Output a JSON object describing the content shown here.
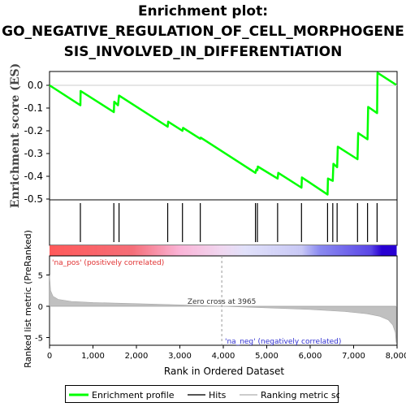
{
  "title_lines": [
    "Enrichment plot:",
    "GO_NEGATIVE_REGULATION_OF_CELL_MORPHOGENE",
    "SIS_INVOLVED_IN_DIFFERENTIATION"
  ],
  "chart_data": {
    "type": "line",
    "es_panel": {
      "ylabel": "Enrichment score (ES)",
      "ylim": [
        -0.5,
        0.05
      ],
      "yticks": [
        "0.0",
        "-0.1",
        "-0.2",
        "-0.3",
        "-0.4",
        "-0.5"
      ],
      "ytick_values": [
        0.0,
        -0.1,
        -0.2,
        -0.3,
        -0.4,
        -0.5
      ],
      "profile_color": "#00ff00",
      "profile": [
        [
          0,
          0.0
        ],
        [
          710,
          -0.088
        ],
        [
          715,
          -0.025
        ],
        [
          1480,
          -0.118
        ],
        [
          1490,
          -0.072
        ],
        [
          1575,
          -0.088
        ],
        [
          1600,
          -0.045
        ],
        [
          2720,
          -0.182
        ],
        [
          2730,
          -0.16
        ],
        [
          3060,
          -0.2
        ],
        [
          3075,
          -0.187
        ],
        [
          3470,
          -0.235
        ],
        [
          3480,
          -0.23
        ],
        [
          4740,
          -0.385
        ],
        [
          4760,
          -0.37
        ],
        [
          4785,
          -0.373
        ],
        [
          4795,
          -0.357
        ],
        [
          5250,
          -0.41
        ],
        [
          5265,
          -0.385
        ],
        [
          5800,
          -0.45
        ],
        [
          5810,
          -0.405
        ],
        [
          6400,
          -0.48
        ],
        [
          6410,
          -0.41
        ],
        [
          6520,
          -0.42
        ],
        [
          6535,
          -0.345
        ],
        [
          6620,
          -0.36
        ],
        [
          6635,
          -0.27
        ],
        [
          7090,
          -0.325
        ],
        [
          7105,
          -0.21
        ],
        [
          7320,
          -0.237
        ],
        [
          7335,
          -0.095
        ],
        [
          7540,
          -0.122
        ],
        [
          7550,
          0.055
        ],
        [
          7980,
          0.002
        ]
      ]
    },
    "hits": [
      710,
      1480,
      1600,
      2720,
      3060,
      3470,
      4740,
      4785,
      5250,
      5800,
      6400,
      6520,
      6620,
      7090,
      7320,
      7540
    ],
    "metric_panel": {
      "ylabel": "Ranked list metric (PreRanked)",
      "ylim": [
        -6,
        8
      ],
      "yticks": [
        "5",
        "0",
        "-5"
      ],
      "ytick_values": [
        5,
        0,
        -5
      ],
      "metric": [
        [
          0,
          5.0
        ],
        [
          25,
          2.5
        ],
        [
          80,
          1.6
        ],
        [
          200,
          1.1
        ],
        [
          500,
          0.78
        ],
        [
          1000,
          0.6
        ],
        [
          2000,
          0.42
        ],
        [
          3000,
          0.22
        ],
        [
          3965,
          0.0
        ],
        [
          5000,
          -0.25
        ],
        [
          6000,
          -0.5
        ],
        [
          6800,
          -0.85
        ],
        [
          7300,
          -1.2
        ],
        [
          7600,
          -1.6
        ],
        [
          7800,
          -2.2
        ],
        [
          7900,
          -3.0
        ],
        [
          7960,
          -4.2
        ],
        [
          7980,
          -5.8
        ]
      ],
      "zero_cross_label": "Zero cross at 3965",
      "zero_cross": 3965,
      "pos_label": "'na_pos' (positively correlated)",
      "neg_label": "'na_neg' (negatively correlated)"
    },
    "xlabel": "Rank in Ordered Dataset",
    "xlim": [
      0,
      8000
    ],
    "xticks": [
      "0",
      "1,000",
      "2,000",
      "3,000",
      "4,000",
      "5,000",
      "6,000",
      "7,000",
      "8,000"
    ],
    "xtick_values": [
      0,
      1000,
      2000,
      3000,
      4000,
      5000,
      6000,
      7000,
      8000
    ],
    "legend": [
      {
        "label": "Enrichment profile",
        "color": "#00ff00"
      },
      {
        "label": "Hits",
        "color": "#555555"
      },
      {
        "label": "Ranking metric scores",
        "color": "#cccccc"
      }
    ]
  }
}
